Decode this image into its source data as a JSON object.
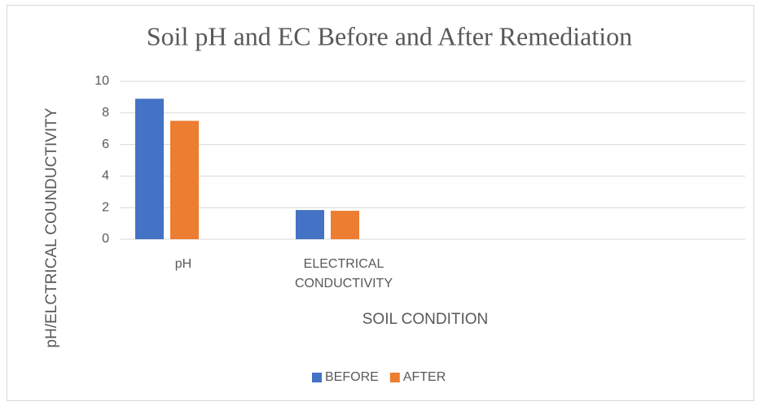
{
  "chart_data": {
    "type": "bar",
    "title": "Soil pH and EC Before and After Remediation",
    "x_label": "SOIL CONDITION",
    "y_label": "pH/ELCTRICAL COUNDUCTIVITY",
    "categories": [
      "pH",
      "ELECTRICAL CONDUCTIVITY",
      null,
      null
    ],
    "series": [
      {
        "name": "BEFORE",
        "color": "#4472c4",
        "values": [
          8.9,
          1.85,
          null,
          null
        ]
      },
      {
        "name": "AFTER",
        "color": "#ed7d31",
        "values": [
          7.5,
          1.8,
          null,
          null
        ]
      }
    ],
    "ylim": [
      0,
      10
    ],
    "yticks": [
      0,
      2,
      4,
      6,
      8,
      10
    ],
    "grid": true,
    "legend": "bottom"
  }
}
